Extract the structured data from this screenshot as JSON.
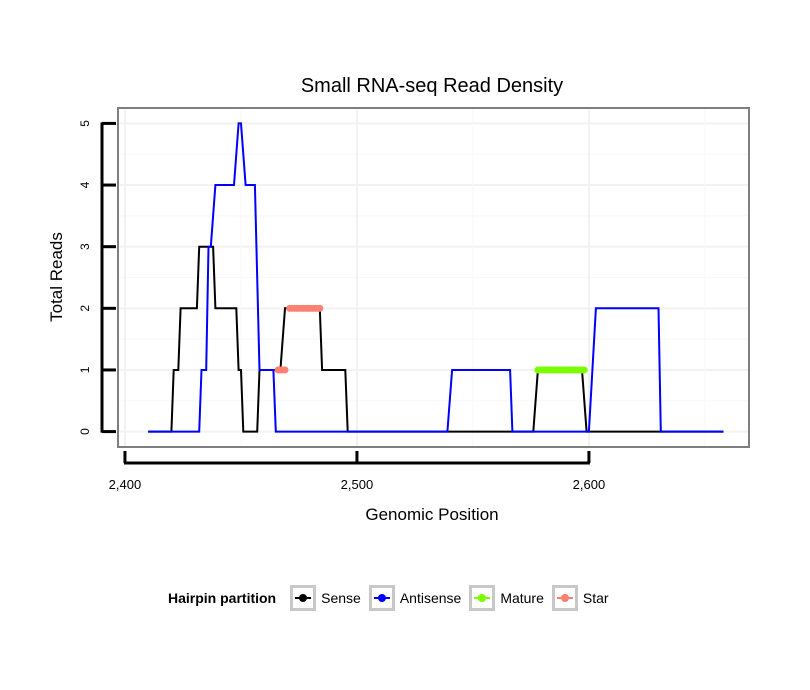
{
  "chart_data": {
    "type": "line",
    "title": "Small RNA-seq Read Density",
    "xlabel": "Genomic Position",
    "ylabel": "Total Reads",
    "xlim": [
      2397,
      2669
    ],
    "ylim": [
      -0.25,
      5.25
    ],
    "x_ticks": [
      2400,
      2500,
      2600
    ],
    "x_tick_labels": [
      "2,400",
      "2,500",
      "2,600"
    ],
    "y_ticks": [
      0,
      1,
      2,
      3,
      4,
      5
    ],
    "y_tick_labels": [
      "0",
      "1",
      "2",
      "3",
      "4",
      "5"
    ],
    "grid": true,
    "legend_position": "bottom",
    "legend_title": "Hairpin partition",
    "series": [
      {
        "name": "Sense",
        "color": "#000000",
        "kind": "line",
        "points": [
          [
            2410,
            0
          ],
          [
            2420,
            0
          ],
          [
            2421,
            1
          ],
          [
            2423,
            1
          ],
          [
            2424,
            2
          ],
          [
            2431,
            2
          ],
          [
            2432,
            3
          ],
          [
            2438,
            3
          ],
          [
            2439,
            2
          ],
          [
            2448,
            2
          ],
          [
            2449,
            1
          ],
          [
            2450,
            1
          ],
          [
            2451,
            0
          ],
          [
            2457,
            0
          ],
          [
            2458,
            1
          ],
          [
            2467,
            1
          ],
          [
            2469,
            2
          ],
          [
            2484,
            2
          ],
          [
            2485,
            1
          ],
          [
            2495,
            1
          ],
          [
            2496,
            0
          ],
          [
            2576,
            0
          ],
          [
            2578,
            1
          ],
          [
            2597,
            1
          ],
          [
            2599,
            0
          ],
          [
            2658,
            0
          ]
        ]
      },
      {
        "name": "Antisense",
        "color": "#0000ff",
        "kind": "line",
        "points": [
          [
            2410,
            0
          ],
          [
            2432,
            0
          ],
          [
            2433,
            1
          ],
          [
            2435,
            1
          ],
          [
            2436,
            3
          ],
          [
            2437,
            3
          ],
          [
            2439,
            4
          ],
          [
            2447,
            4
          ],
          [
            2449,
            5
          ],
          [
            2450,
            5
          ],
          [
            2452,
            4
          ],
          [
            2456,
            4
          ],
          [
            2458,
            1
          ],
          [
            2464,
            1
          ],
          [
            2465,
            0
          ],
          [
            2539,
            0
          ],
          [
            2541,
            1
          ],
          [
            2566,
            1
          ],
          [
            2567,
            0
          ],
          [
            2600,
            0
          ],
          [
            2603,
            2
          ],
          [
            2630,
            2
          ],
          [
            2631,
            0
          ],
          [
            2658,
            0
          ]
        ]
      },
      {
        "name": "Mature",
        "color": "#7cfc00",
        "kind": "points",
        "x_range": [
          2578,
          2598
        ],
        "y": 1
      },
      {
        "name": "Star",
        "color": "#fa8072",
        "kind": "points",
        "segments": [
          {
            "x_range": [
              2466,
              2469
            ],
            "y": 1
          },
          {
            "x_range": [
              2471,
              2484
            ],
            "y": 2
          }
        ]
      }
    ]
  }
}
